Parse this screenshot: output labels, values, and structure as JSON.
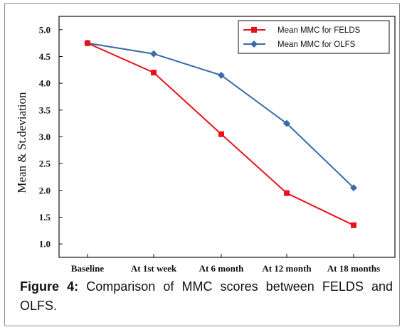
{
  "chart_data": {
    "type": "line",
    "categories": [
      "Baseline",
      "At 1st week",
      "At 6 month",
      "At 12 month",
      "At 18 months"
    ],
    "series": [
      {
        "name": "Mean MMC for FELDS",
        "values": [
          4.75,
          4.2,
          3.05,
          1.95,
          1.35
        ],
        "color": "#e8121b",
        "marker": "square"
      },
      {
        "name": "Mean MMC for OLFS",
        "values": [
          4.75,
          4.55,
          4.15,
          3.25,
          2.05
        ],
        "color": "#3a6aa8",
        "marker": "diamond"
      }
    ],
    "ylabel": "Mean & St.deviation",
    "xlabel": "",
    "ylim": [
      0.75,
      5.25
    ],
    "yticks": [
      "1.0",
      "1.5",
      "2.0",
      "2.5",
      "3.0",
      "3.5",
      "4.0",
      "4.5",
      "5.0"
    ],
    "legend_position": "top-right",
    "grid": false
  },
  "caption": {
    "label": "Figure 4:",
    "text": " Comparison of MMC scores between FELDS and OLFS."
  }
}
